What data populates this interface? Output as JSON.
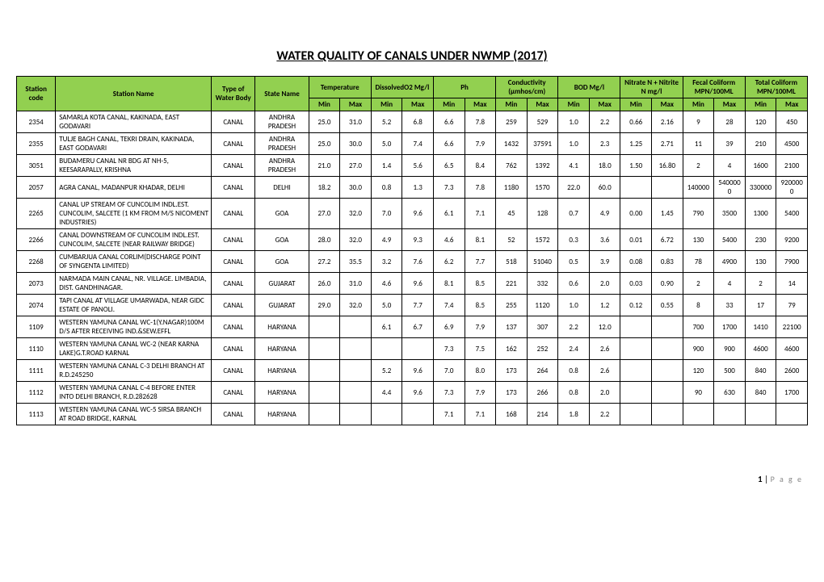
{
  "title": "WATER QUALITY OF CANALS UNDER NWMP (2017)",
  "header_bg": "#92d050",
  "columns": {
    "code": "Station code",
    "name": "Station Name",
    "type": "Type of Water Body",
    "state": "State Name",
    "groups": [
      {
        "label": "Temperature"
      },
      {
        "label": "DissolvedO2 Mg/l"
      },
      {
        "label": "Ph"
      },
      {
        "label": "Conductivity (µmhos/cm)"
      },
      {
        "label": "BOD Mg/l"
      },
      {
        "label": "Nitrate N + Nitrite N mg/l"
      },
      {
        "label": "Fecal Coliform MPN/100ML"
      },
      {
        "label": "Total Coliform MPN/100ML"
      }
    ],
    "sub": {
      "min": "Min",
      "max": "Max"
    }
  },
  "rows": [
    {
      "code": "2354",
      "name": "SAMARLA KOTA CANAL, KAKINADA, EAST GODAVARI",
      "type": "CANAL",
      "state": "ANDHRA PRADESH",
      "v": [
        "25.0",
        "31.0",
        "5.2",
        "6.8",
        "6.6",
        "7.8",
        "259",
        "529",
        "1.0",
        "2.2",
        "0.66",
        "2.16",
        "9",
        "28",
        "120",
        "450"
      ]
    },
    {
      "code": "2355",
      "name": "TULJE BAGH CANAL, TEKRI DRAIN, KAKINADA, EAST GODAVARI",
      "type": "CANAL",
      "state": "ANDHRA PRADESH",
      "v": [
        "25.0",
        "30.0",
        "5.0",
        "7.4",
        "6.6",
        "7.9",
        "1432",
        "37591",
        "1.0",
        "2.3",
        "1.25",
        "2.71",
        "11",
        "39",
        "210",
        "4500"
      ]
    },
    {
      "code": "3051",
      "name": "BUDAMERU CANAL NR BDG AT NH-5, KEESARAPALLY, KRISHNA",
      "type": "CANAL",
      "state": "ANDHRA PRADESH",
      "v": [
        "21.0",
        "27.0",
        "1.4",
        "5.6",
        "6.5",
        "8.4",
        "762",
        "1392",
        "4.1",
        "18.0",
        "1.50",
        "16.80",
        "2",
        "4",
        "1600",
        "2100"
      ]
    },
    {
      "code": "2057",
      "name": "AGRA CANAL, MADANPUR KHADAR, DELHI",
      "type": "CANAL",
      "state": "DELHI",
      "v": [
        "18.2",
        "30.0",
        "0.8",
        "1.3",
        "7.3",
        "7.8",
        "1180",
        "1570",
        "22.0",
        "60.0",
        "",
        "",
        "140000",
        "5400000",
        "330000",
        "9200000"
      ]
    },
    {
      "code": "2265",
      "name": "CANAL UP STREAM OF CUNCOLIM INDL.EST. CUNCOLIM, SALCETE (1 KM FROM M/S NICOMENT INDUSTRIES)",
      "type": "CANAL",
      "state": "GOA",
      "v": [
        "27.0",
        "32.0",
        "7.0",
        "9.6",
        "6.1",
        "7.1",
        "45",
        "128",
        "0.7",
        "4.9",
        "0.00",
        "1.45",
        "790",
        "3500",
        "1300",
        "5400"
      ]
    },
    {
      "code": "2266",
      "name": "CANAL DOWNSTREAM OF CUNCOLIM INDL.EST. CUNCOLIM, SALCETE (NEAR RAILWAY BRIDGE)",
      "type": "CANAL",
      "state": "GOA",
      "v": [
        "28.0",
        "32.0",
        "4.9",
        "9.3",
        "4.6",
        "8.1",
        "52",
        "1572",
        "0.3",
        "3.6",
        "0.01",
        "6.72",
        "130",
        "5400",
        "230",
        "9200"
      ]
    },
    {
      "code": "2268",
      "name": "CUMBARJUA CANAL CORLIM(DISCHARGE POINT OF SYNGENTA LIMITED)",
      "type": "CANAL",
      "state": "GOA",
      "v": [
        "27.2",
        "35.5",
        "3.2",
        "7.6",
        "6.2",
        "7.7",
        "518",
        "51040",
        "0.5",
        "3.9",
        "0.08",
        "0.83",
        "78",
        "4900",
        "130",
        "7900"
      ]
    },
    {
      "code": "2073",
      "name": "NARMADA MAIN CANAL, NR. VILLAGE. LIMBADIA, DIST. GANDHINAGAR.",
      "type": "CANAL",
      "state": "GUJARAT",
      "v": [
        "26.0",
        "31.0",
        "4.6",
        "9.6",
        "8.1",
        "8.5",
        "221",
        "332",
        "0.6",
        "2.0",
        "0.03",
        "0.90",
        "2",
        "4",
        "2",
        "14"
      ]
    },
    {
      "code": "2074",
      "name": "TAPI CANAL AT VILLAGE UMARWADA, NEAR GIDC ESTATE OF PANOLI.",
      "type": "CANAL",
      "state": "GUJARAT",
      "v": [
        "29.0",
        "32.0",
        "5.0",
        "7.7",
        "7.4",
        "8.5",
        "255",
        "1120",
        "1.0",
        "1.2",
        "0.12",
        "0.55",
        "8",
        "33",
        "17",
        "79"
      ]
    },
    {
      "code": "1109",
      "name": "WESTERN YAMUNA CANAL WC-1(Y.NAGAR)100M D/S AFTER RECEIVING IND.&SEW.EFFL",
      "type": "CANAL",
      "state": "HARYANA",
      "v": [
        "",
        "",
        "6.1",
        "6.7",
        "6.9",
        "7.9",
        "137",
        "307",
        "2.2",
        "12.0",
        "",
        "",
        "700",
        "1700",
        "1410",
        "22100"
      ]
    },
    {
      "code": "1110",
      "name": "WESTERN YAMUNA CANAL WC-2 (NEAR KARNA LAKE)G.T.ROAD KARNAL",
      "type": "CANAL",
      "state": "HARYANA",
      "v": [
        "",
        "",
        "",
        "",
        "7.3",
        "7.5",
        "162",
        "252",
        "2.4",
        "2.6",
        "",
        "",
        "900",
        "900",
        "4600",
        "4600"
      ]
    },
    {
      "code": "1111",
      "name": "WESTERN YAMUNA CANAL C-3 DELHI BRANCH AT R.D.245250",
      "type": "CANAL",
      "state": "HARYANA",
      "v": [
        "",
        "",
        "5.2",
        "9.6",
        "7.0",
        "8.0",
        "173",
        "264",
        "0.8",
        "2.6",
        "",
        "",
        "120",
        "500",
        "840",
        "2600"
      ]
    },
    {
      "code": "1112",
      "name": "WESTERN YAMUNA CANAL C-4 BEFORE ENTER INTO DELHI BRANCH, R.D.282628",
      "type": "CANAL",
      "state": "HARYANA",
      "v": [
        "",
        "",
        "4.4",
        "9.6",
        "7.3",
        "7.9",
        "173",
        "266",
        "0.8",
        "2.0",
        "",
        "",
        "90",
        "630",
        "840",
        "1700"
      ]
    },
    {
      "code": "1113",
      "name": "WESTERN YAMUNA CANAL WC-5 SIRSA BRANCH AT ROAD BRIDGE, KARNAL",
      "type": "CANAL",
      "state": "HARYANA",
      "v": [
        "",
        "",
        "",
        "",
        "7.1",
        "7.1",
        "168",
        "214",
        "1.8",
        "2.2",
        "",
        "",
        "",
        "",
        "",
        ""
      ]
    }
  ],
  "footer": {
    "page_number": "1",
    "page_label": "P a g e",
    "sep": " | "
  }
}
